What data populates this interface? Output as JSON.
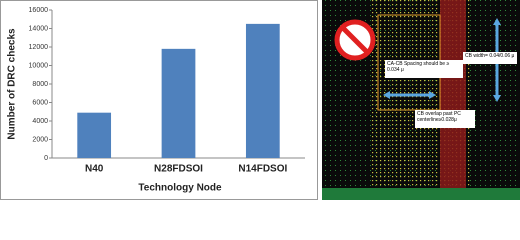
{
  "chart_data": {
    "type": "bar",
    "categories": [
      "N40",
      "N28FDSOI",
      "N14FDSOI"
    ],
    "values": [
      4900,
      11800,
      14500
    ],
    "color": "#4f81bd",
    "ylabel": "Number of DRC checks",
    "xlabel": "Technology Node",
    "ylim": [
      0,
      16000
    ],
    "yticks": [
      0,
      2000,
      4000,
      6000,
      8000,
      10000,
      12000,
      14000,
      16000
    ],
    "grid": false
  },
  "layout_annotations": {
    "spacing": "CA-CB Spacing should be ≥ 0.034 μ",
    "width": "CB width= 0.04/0.06 μ",
    "overlap": "CB overlap past PC centerline≥0.028μ"
  }
}
